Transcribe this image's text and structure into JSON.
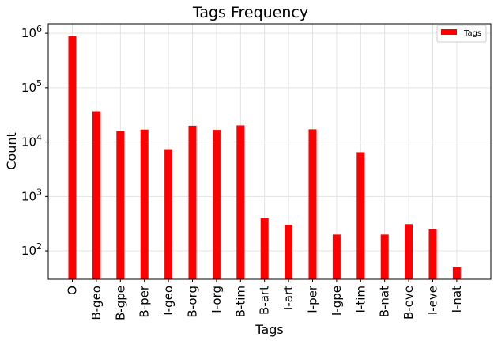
{
  "chart_data": {
    "type": "bar",
    "title": "Tags Frequency",
    "xlabel": "Tags",
    "ylabel": "Count",
    "yscale": "log",
    "ylim": [
      30,
      1500000
    ],
    "grid": true,
    "legend": {
      "position": "top-right",
      "entries": [
        "Tags"
      ]
    },
    "bar_color": "#ff0000",
    "categories": [
      "O",
      "B-geo",
      "B-gpe",
      "B-per",
      "I-geo",
      "B-org",
      "I-org",
      "B-tim",
      "B-art",
      "I-art",
      "I-per",
      "I-gpe",
      "I-tim",
      "B-nat",
      "B-eve",
      "I-eve",
      "I-nat"
    ],
    "values": [
      890000,
      37000,
      16000,
      17000,
      7400,
      20000,
      16800,
      20300,
      400,
      300,
      17200,
      200,
      6500,
      200,
      310,
      250,
      50
    ],
    "yticks": [
      {
        "base": "10",
        "exp": "2",
        "value": 100
      },
      {
        "base": "10",
        "exp": "3",
        "value": 1000
      },
      {
        "base": "10",
        "exp": "4",
        "value": 10000
      },
      {
        "base": "10",
        "exp": "5",
        "value": 100000
      },
      {
        "base": "10",
        "exp": "6",
        "value": 1000000
      }
    ]
  }
}
